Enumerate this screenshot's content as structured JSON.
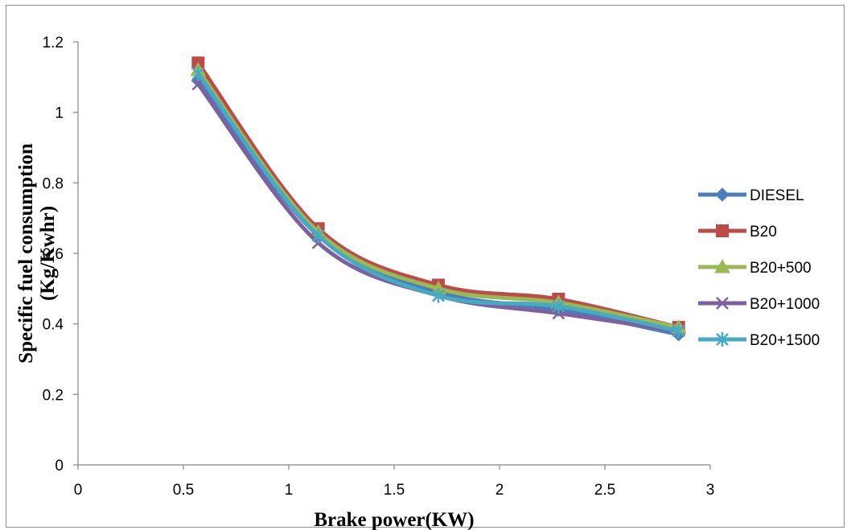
{
  "chart_data": {
    "type": "line",
    "title": "",
    "xlabel": "Brake power(KW)",
    "ylabel_lines": [
      "Specific fuel consumption",
      "(Kg/Kwhr)"
    ],
    "xlim": [
      0,
      3
    ],
    "ylim": [
      0,
      1.2
    ],
    "xticks": [
      "0",
      "0.5",
      "1",
      "1.5",
      "2",
      "2.5",
      "3"
    ],
    "yticks": [
      "0",
      "0.2",
      "0.4",
      "0.6",
      "0.8",
      "1",
      "1.2"
    ],
    "grid": false,
    "legend_position": "right",
    "series": [
      {
        "name": "DIESEL",
        "color": "#4a7ebb",
        "marker": "diamond",
        "x": [
          0.57,
          1.14,
          1.71,
          2.28,
          2.85
        ],
        "y": [
          1.09,
          0.65,
          0.49,
          0.44,
          0.37
        ]
      },
      {
        "name": "B20",
        "color": "#be4b48",
        "marker": "square",
        "x": [
          0.57,
          1.14,
          1.71,
          2.28,
          2.85
        ],
        "y": [
          1.14,
          0.67,
          0.51,
          0.47,
          0.39
        ]
      },
      {
        "name": "B20+500",
        "color": "#98b954",
        "marker": "triangle",
        "x": [
          0.57,
          1.14,
          1.71,
          2.28,
          2.85
        ],
        "y": [
          1.12,
          0.66,
          0.5,
          0.46,
          0.39
        ]
      },
      {
        "name": "B20+1000",
        "color": "#7d60a0",
        "marker": "x",
        "x": [
          0.57,
          1.14,
          1.71,
          2.28,
          2.85
        ],
        "y": [
          1.08,
          0.63,
          0.48,
          0.43,
          0.38
        ]
      },
      {
        "name": "B20+1500",
        "color": "#46aac5",
        "marker": "star",
        "x": [
          0.57,
          1.14,
          1.71,
          2.28,
          2.85
        ],
        "y": [
          1.11,
          0.65,
          0.48,
          0.45,
          0.38
        ]
      }
    ]
  }
}
